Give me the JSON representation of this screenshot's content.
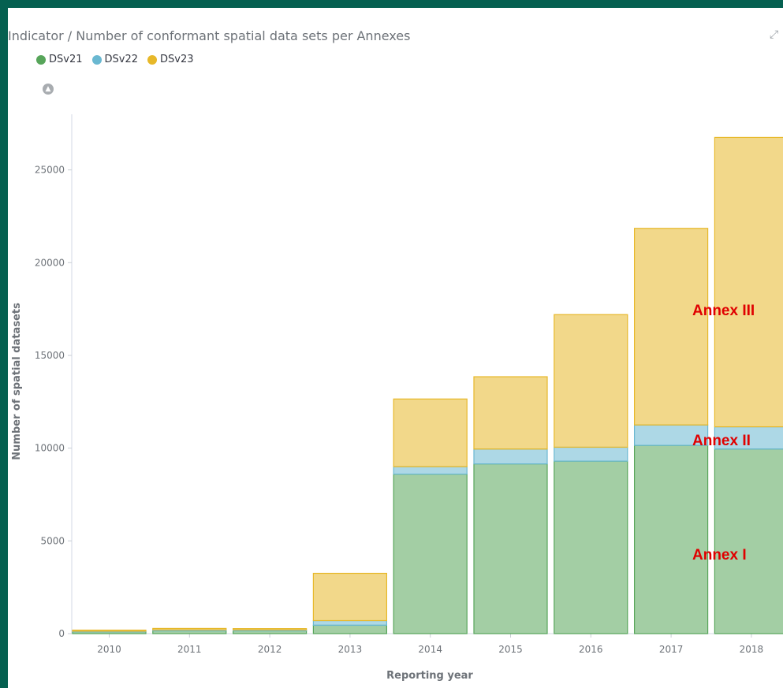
{
  "panel": {
    "title": "Indicator / Number of conformant spatial data sets per Annexes",
    "expand_icon": "expand-icon",
    "collapse_icon": "chevron-up-icon"
  },
  "chart_data": {
    "type": "bar",
    "stacked": true,
    "categories": [
      "2010",
      "2011",
      "2012",
      "2013",
      "2014",
      "2015",
      "2016",
      "2017",
      "2018"
    ],
    "series": [
      {
        "name": "DSv21",
        "color": "#57a55a",
        "values": [
          100,
          150,
          150,
          450,
          8600,
          9150,
          9300,
          10150,
          9950
        ]
      },
      {
        "name": "DSv22",
        "color": "#6ab8d1",
        "values": [
          30,
          50,
          50,
          250,
          400,
          800,
          750,
          1100,
          1200
        ]
      },
      {
        "name": "DSv23",
        "color": "#e7b829",
        "values": [
          60,
          80,
          70,
          2550,
          3650,
          3900,
          7150,
          10600,
          15600
        ]
      }
    ],
    "xlabel": "Reporting year",
    "ylabel": "Number of spatial datasets",
    "ylim": [
      0,
      28000
    ],
    "yticks": [
      0,
      5000,
      10000,
      15000,
      20000,
      25000
    ],
    "legend": "top-left",
    "annotations": [
      "Annex III",
      "Annex II",
      "Annex I"
    ]
  }
}
